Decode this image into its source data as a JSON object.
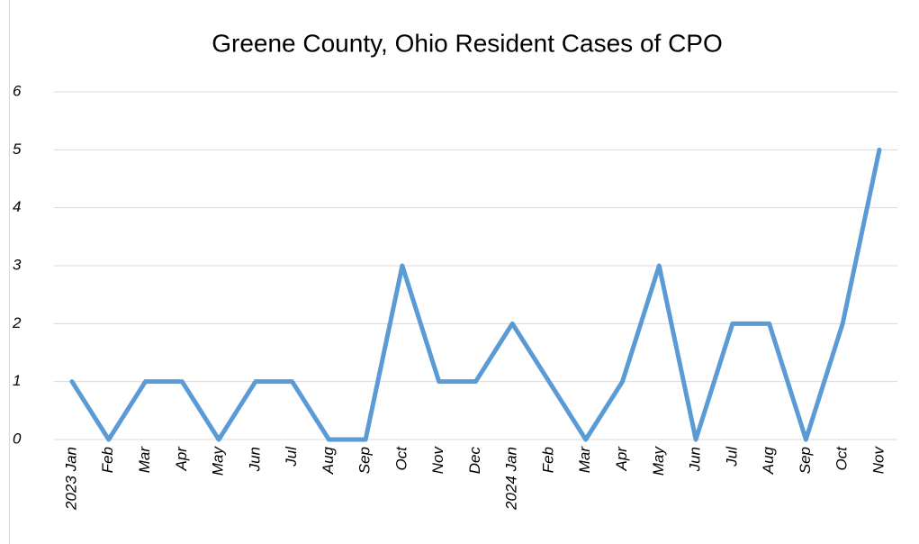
{
  "chart_data": {
    "type": "line",
    "title": "Greene County, Ohio Resident Cases of CPO",
    "categories": [
      "2023 Jan",
      "Feb",
      "Mar",
      "Apr",
      "May",
      "Jun",
      "Jul",
      "Aug",
      "Sep",
      "Oct",
      "Nov",
      "Dec",
      "2024 Jan",
      "Feb",
      "Mar",
      "Apr",
      "May",
      "Jun",
      "Jul",
      "Aug",
      "Sep",
      "Oct",
      "Nov"
    ],
    "values": [
      1,
      0,
      1,
      1,
      0,
      1,
      1,
      0,
      0,
      3,
      1,
      1,
      2,
      1,
      0,
      1,
      3,
      0,
      2,
      2,
      0,
      2,
      5
    ],
    "color": "#5b9bd5",
    "ylim": [
      0,
      6
    ],
    "yticks": [
      0,
      1,
      2,
      3,
      4,
      5,
      6
    ],
    "grid": true
  }
}
